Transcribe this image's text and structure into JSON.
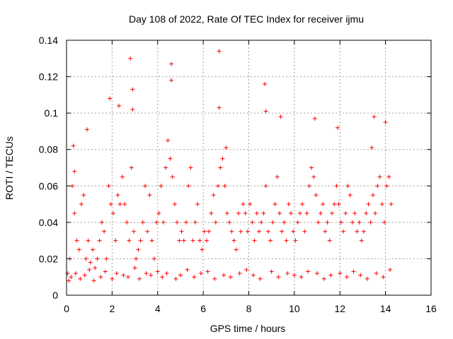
{
  "chart_data": {
    "type": "scatter",
    "title": "Day 108 of 2022, Rate Of TEC Index for receiver ijmu",
    "xlabel": "GPS time / hours",
    "ylabel": "ROTI / TECUs",
    "xlim": [
      0,
      16
    ],
    "ylim": [
      0,
      0.14
    ],
    "xticks": [
      0,
      2,
      4,
      6,
      8,
      10,
      12,
      14,
      16
    ],
    "yticks": [
      0,
      0.02,
      0.04,
      0.06,
      0.08,
      0.1,
      0.12,
      0.14
    ],
    "xtick_labels": [
      "0",
      "2",
      "4",
      "6",
      "8",
      "10",
      "12",
      "14",
      "16"
    ],
    "ytick_labels": [
      "0",
      "0.02",
      "0.04",
      "0.06",
      "0.08",
      "0.1",
      "0.12",
      "0.14"
    ],
    "grid": true,
    "marker": "+",
    "color": "#ff0000",
    "series": [
      {
        "name": "ROTI",
        "x": [
          0.05,
          0.15,
          0.25,
          0.35,
          0.45,
          0.55,
          0.65,
          0.75,
          0.85,
          0.95,
          1.05,
          1.15,
          1.25,
          1.35,
          1.45,
          1.55,
          1.65,
          1.75,
          1.85,
          1.95,
          2.05,
          2.15,
          2.25,
          2.35,
          2.45,
          2.55,
          2.65,
          2.75,
          2.85,
          2.95,
          3.05,
          3.15,
          3.25,
          3.35,
          3.45,
          3.55,
          3.65,
          3.75,
          3.85,
          3.95,
          4.05,
          4.15,
          4.25,
          4.35,
          4.45,
          4.55,
          4.65,
          4.75,
          4.85,
          4.95,
          5.05,
          5.15,
          5.25,
          5.35,
          5.45,
          5.55,
          5.65,
          5.75,
          5.85,
          5.95,
          6.05,
          6.15,
          6.25,
          6.35,
          6.45,
          6.55,
          6.65,
          6.75,
          6.85,
          6.95,
          7.05,
          7.15,
          7.25,
          7.35,
          7.45,
          7.55,
          7.65,
          7.75,
          7.85,
          7.95,
          8.05,
          8.15,
          8.25,
          8.35,
          8.45,
          8.55,
          8.65,
          8.75,
          8.85,
          8.95,
          9.05,
          9.15,
          9.25,
          9.35,
          9.45,
          9.55,
          9.65,
          9.75,
          9.85,
          9.95,
          10.05,
          10.15,
          10.25,
          10.35,
          10.45,
          10.55,
          10.65,
          10.75,
          10.85,
          10.95,
          11.05,
          11.15,
          11.25,
          11.35,
          11.45,
          11.55,
          11.65,
          11.75,
          11.85,
          11.95,
          12.05,
          12.15,
          12.25,
          12.35,
          12.45,
          12.55,
          12.65,
          12.75,
          12.85,
          12.95,
          13.05,
          13.15,
          13.25,
          13.35,
          13.45,
          13.55,
          13.65,
          13.75,
          13.85,
          13.95,
          14.05,
          14.15,
          14.25,
          0.3,
          0.35,
          0.9,
          1.9,
          2.3,
          2.8,
          2.9,
          2.9,
          4.6,
          4.6,
          6.7,
          6.7,
          7.0,
          8.7,
          8.75,
          9.4,
          10.9,
          11.9,
          13.5,
          13.4,
          14.0,
          0.1,
          0.2,
          0.4,
          0.6,
          0.8,
          1.0,
          1.2,
          1.5,
          1.7,
          2.0,
          2.2,
          2.5,
          2.7,
          3.0,
          3.2,
          3.5,
          3.7,
          4.0,
          4.2,
          4.4,
          4.8,
          5.0,
          5.3,
          5.6,
          5.9,
          6.2,
          6.5,
          6.9,
          7.2,
          7.6,
          7.9,
          8.2,
          8.5,
          9.0,
          9.3,
          9.7,
          10.0,
          10.3,
          10.6,
          11.0,
          11.3,
          11.6,
          12.0,
          12.3,
          12.6,
          12.9,
          13.2,
          13.6,
          13.9,
          14.2
        ],
        "y": [
          0.012,
          0.02,
          0.06,
          0.045,
          0.03,
          0.025,
          0.05,
          0.055,
          0.02,
          0.03,
          0.018,
          0.025,
          0.015,
          0.02,
          0.03,
          0.04,
          0.035,
          0.02,
          0.06,
          0.05,
          0.045,
          0.03,
          0.055,
          0.05,
          0.065,
          0.05,
          0.04,
          0.03,
          0.07,
          0.035,
          0.02,
          0.025,
          0.03,
          0.04,
          0.06,
          0.035,
          0.055,
          0.03,
          0.02,
          0.04,
          0.045,
          0.06,
          0.04,
          0.07,
          0.085,
          0.075,
          0.065,
          0.05,
          0.04,
          0.03,
          0.035,
          0.03,
          0.04,
          0.06,
          0.07,
          0.03,
          0.04,
          0.05,
          0.03,
          0.025,
          0.035,
          0.03,
          0.035,
          0.045,
          0.055,
          0.04,
          0.06,
          0.07,
          0.075,
          0.06,
          0.045,
          0.04,
          0.035,
          0.03,
          0.025,
          0.045,
          0.035,
          0.05,
          0.045,
          0.035,
          0.05,
          0.04,
          0.03,
          0.045,
          0.035,
          0.04,
          0.045,
          0.06,
          0.035,
          0.03,
          0.04,
          0.05,
          0.065,
          0.045,
          0.035,
          0.04,
          0.03,
          0.05,
          0.045,
          0.035,
          0.03,
          0.04,
          0.045,
          0.05,
          0.035,
          0.045,
          0.06,
          0.07,
          0.065,
          0.055,
          0.04,
          0.045,
          0.05,
          0.035,
          0.04,
          0.03,
          0.045,
          0.05,
          0.06,
          0.05,
          0.04,
          0.035,
          0.045,
          0.06,
          0.055,
          0.04,
          0.045,
          0.035,
          0.04,
          0.03,
          0.035,
          0.045,
          0.05,
          0.04,
          0.055,
          0.045,
          0.06,
          0.065,
          0.05,
          0.04,
          0.06,
          0.065,
          0.05,
          0.082,
          0.068,
          0.091,
          0.108,
          0.104,
          0.13,
          0.113,
          0.102,
          0.127,
          0.118,
          0.134,
          0.103,
          0.081,
          0.116,
          0.101,
          0.098,
          0.097,
          0.092,
          0.098,
          0.081,
          0.095,
          0.008,
          0.01,
          0.012,
          0.009,
          0.011,
          0.014,
          0.008,
          0.01,
          0.013,
          0.009,
          0.012,
          0.011,
          0.01,
          0.015,
          0.009,
          0.012,
          0.011,
          0.013,
          0.01,
          0.012,
          0.009,
          0.011,
          0.014,
          0.01,
          0.012,
          0.013,
          0.009,
          0.011,
          0.01,
          0.012,
          0.014,
          0.011,
          0.009,
          0.013,
          0.01,
          0.012,
          0.011,
          0.01,
          0.013,
          0.012,
          0.009,
          0.011,
          0.012,
          0.01,
          0.013,
          0.011,
          0.009,
          0.012,
          0.01,
          0.014
        ]
      }
    ]
  }
}
